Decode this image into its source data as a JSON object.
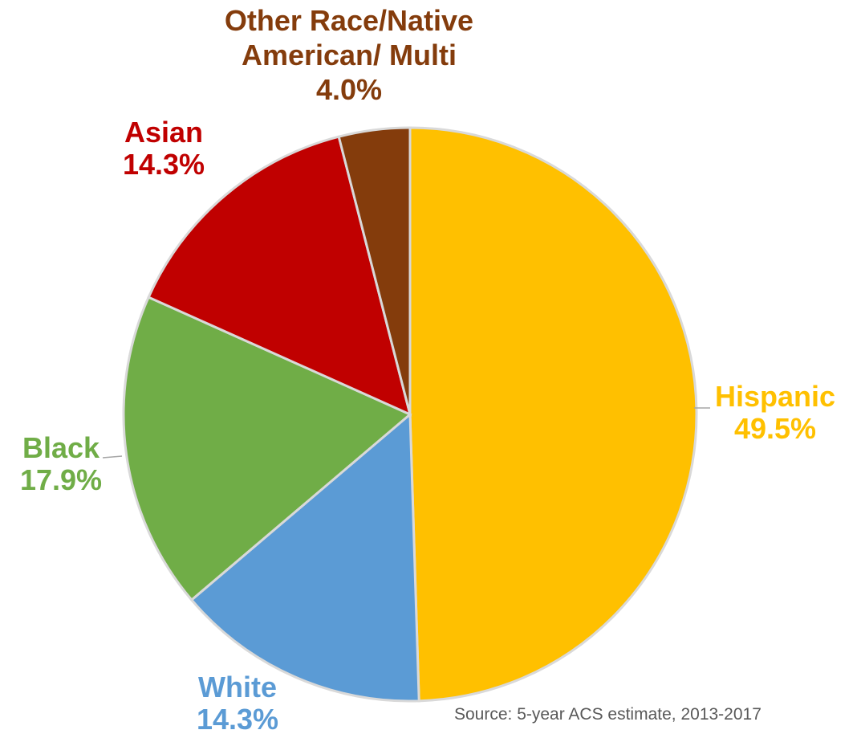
{
  "chart_data": {
    "type": "pie",
    "start_angle_deg": 0,
    "direction": "clockwise",
    "slices": [
      {
        "label": "Hispanic",
        "value": 49.5,
        "value_label": "49.5%",
        "color": "#FFC000"
      },
      {
        "label": "White",
        "value": 14.3,
        "value_label": "14.3%",
        "color": "#5B9BD5"
      },
      {
        "label": "Black",
        "value": 17.9,
        "value_label": "17.9%",
        "color": "#70AD47"
      },
      {
        "label": "Asian",
        "value": 14.3,
        "value_label": "14.3%",
        "color": "#C00000"
      },
      {
        "label": "Other Race/Native American/ Multi",
        "value": 4.0,
        "value_label": "4.0%",
        "color": "#843C0C"
      }
    ],
    "legend": "none",
    "source": "Source: 5-year ACS estimate, 2013-2017"
  }
}
